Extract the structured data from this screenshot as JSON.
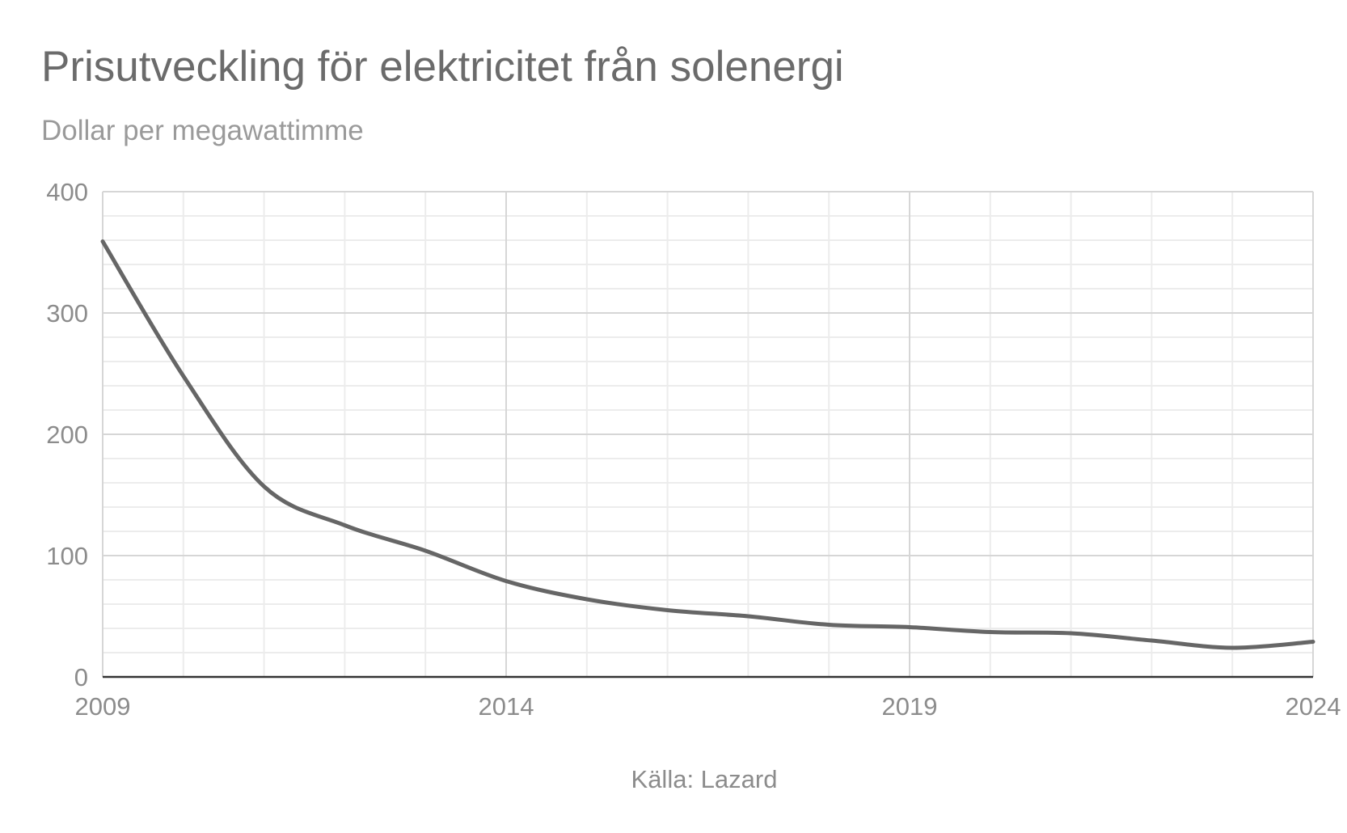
{
  "chart_data": {
    "type": "line",
    "title": "Prisutveckling för elektricitet från solenergi",
    "subtitle": "Dollar per megawattimme",
    "source": "Källa: Lazard",
    "xlabel": "",
    "ylabel": "",
    "xlim": [
      2009,
      2024
    ],
    "ylim": [
      0,
      400
    ],
    "x_ticks": [
      "2009",
      "2014",
      "2019",
      "2024"
    ],
    "y_ticks": [
      "0",
      "100",
      "200",
      "300",
      "400"
    ],
    "grid": true,
    "legend": "none",
    "line_color": "#666666",
    "series": [
      {
        "x": [
          2009,
          2010,
          2011,
          2012,
          2013,
          2014,
          2015,
          2016,
          2017,
          2018,
          2019,
          2020,
          2021,
          2022,
          2023,
          2024
        ],
        "values": [
          359,
          248,
          157,
          125,
          104,
          79,
          64,
          55,
          50,
          43,
          41,
          37,
          36,
          30,
          24,
          29
        ]
      }
    ]
  }
}
